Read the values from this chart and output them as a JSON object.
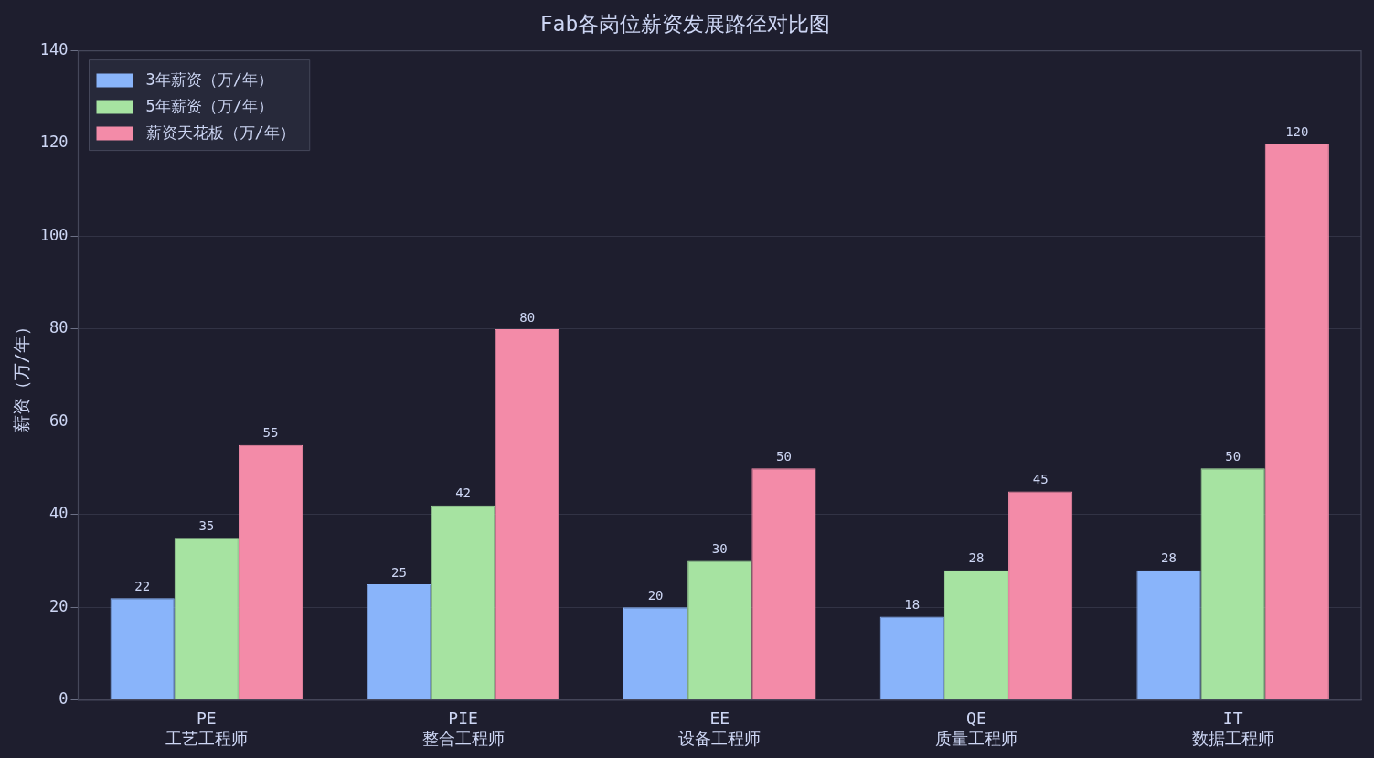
{
  "chart_data": {
    "type": "bar",
    "title": "Fab各岗位薪资发展路径对比图",
    "ylabel": "薪资（万/年）",
    "categories": [
      "PE\n工艺工程师",
      "PIE\n整合工程师",
      "EE\n设备工程师",
      "QE\n质量工程师",
      "IT\n数据工程师"
    ],
    "series": [
      {
        "name": "3年薪资（万/年）",
        "color": "#89b4fa",
        "values": [
          22,
          25,
          20,
          18,
          28
        ]
      },
      {
        "name": "5年薪资（万/年）",
        "color": "#a6e3a1",
        "values": [
          35,
          42,
          30,
          28,
          50
        ]
      },
      {
        "name": "薪资天花板（万/年）",
        "color": "#f38ba8",
        "values": [
          55,
          80,
          50,
          45,
          120
        ]
      }
    ],
    "ylim": [
      0,
      140
    ],
    "yticks": [
      0,
      20,
      40,
      60,
      80,
      100,
      120,
      140
    ],
    "grid": "y",
    "legend": "top left",
    "data_labels": true
  }
}
